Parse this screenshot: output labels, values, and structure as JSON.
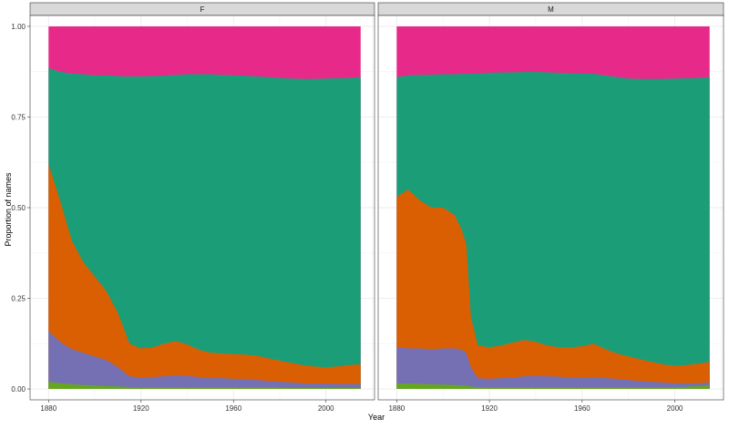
{
  "chart_data": {
    "type": "area",
    "xlabel": "Year",
    "ylabel": "Proportion of names",
    "xlim": [
      1872,
      2021
    ],
    "ylim": [
      -0.03,
      1.03
    ],
    "x_ticks": [
      1880,
      1920,
      1960,
      2000
    ],
    "x_tick_labels": [
      "1880",
      "1920",
      "1960",
      "2000"
    ],
    "y_ticks": [
      0,
      0.25,
      0.5,
      0.75,
      1
    ],
    "y_tick_labels": [
      "0.00",
      "0.25",
      "0.50",
      "0.75",
      "1.00"
    ],
    "grid": true,
    "stacking": "fill",
    "layer_order_bottom_to_top": [
      "green",
      "purple",
      "orange",
      "teal",
      "pink"
    ],
    "colors": {
      "green": "#66a61e",
      "purple": "#7570b3",
      "orange": "#d95f02",
      "teal": "#1b9e77",
      "pink": "#e7298a"
    },
    "panels": [
      {
        "facet": "F",
        "x": [
          1880,
          1885,
          1890,
          1895,
          1900,
          1905,
          1910,
          1913,
          1915,
          1920,
          1925,
          1930,
          1935,
          1940,
          1945,
          1950,
          1955,
          1960,
          1965,
          1970,
          1975,
          1980,
          1985,
          1990,
          1995,
          2000,
          2005,
          2010,
          2015
        ],
        "cumulative_tops": {
          "green": [
            0.02,
            0.016,
            0.013,
            0.011,
            0.01,
            0.008,
            0.007,
            0.006,
            0.005,
            0.004,
            0.004,
            0.004,
            0.004,
            0.004,
            0.004,
            0.004,
            0.004,
            0.004,
            0.004,
            0.004,
            0.004,
            0.004,
            0.003,
            0.003,
            0.003,
            0.003,
            0.003,
            0.003,
            0.003
          ],
          "purple": [
            0.16,
            0.13,
            0.11,
            0.1,
            0.09,
            0.08,
            0.06,
            0.045,
            0.035,
            0.032,
            0.033,
            0.035,
            0.038,
            0.036,
            0.033,
            0.03,
            0.03,
            0.028,
            0.028,
            0.025,
            0.022,
            0.02,
            0.018,
            0.016,
            0.015,
            0.015,
            0.014,
            0.014,
            0.014
          ],
          "orange": [
            0.62,
            0.52,
            0.41,
            0.35,
            0.31,
            0.27,
            0.21,
            0.16,
            0.125,
            0.112,
            0.115,
            0.125,
            0.132,
            0.123,
            0.108,
            0.1,
            0.098,
            0.096,
            0.095,
            0.092,
            0.085,
            0.078,
            0.072,
            0.066,
            0.062,
            0.06,
            0.062,
            0.066,
            0.068
          ],
          "teal": [
            0.885,
            0.875,
            0.87,
            0.868,
            0.865,
            0.865,
            0.863,
            0.862,
            0.862,
            0.862,
            0.863,
            0.864,
            0.866,
            0.868,
            0.868,
            0.868,
            0.866,
            0.865,
            0.864,
            0.862,
            0.86,
            0.858,
            0.856,
            0.855,
            0.855,
            0.856,
            0.857,
            0.858,
            0.86
          ],
          "pink": [
            1,
            1,
            1,
            1,
            1,
            1,
            1,
            1,
            1,
            1,
            1,
            1,
            1,
            1,
            1,
            1,
            1,
            1,
            1,
            1,
            1,
            1,
            1,
            1,
            1,
            1,
            1,
            1,
            1
          ]
        }
      },
      {
        "facet": "M",
        "x": [
          1880,
          1885,
          1890,
          1895,
          1900,
          1905,
          1908,
          1910,
          1912,
          1915,
          1920,
          1925,
          1930,
          1935,
          1940,
          1945,
          1950,
          1955,
          1960,
          1965,
          1970,
          1975,
          1980,
          1985,
          1990,
          1995,
          2000,
          2005,
          2010,
          2015
        ],
        "cumulative_tops": {
          "green": [
            0.015,
            0.015,
            0.014,
            0.013,
            0.012,
            0.011,
            0.01,
            0.009,
            0.007,
            0.005,
            0.004,
            0.004,
            0.004,
            0.004,
            0.004,
            0.004,
            0.004,
            0.004,
            0.004,
            0.004,
            0.004,
            0.004,
            0.004,
            0.004,
            0.004,
            0.004,
            0.005,
            0.006,
            0.008,
            0.01
          ],
          "purple": [
            0.115,
            0.112,
            0.112,
            0.11,
            0.112,
            0.112,
            0.108,
            0.1,
            0.06,
            0.03,
            0.028,
            0.03,
            0.032,
            0.035,
            0.036,
            0.035,
            0.034,
            0.032,
            0.032,
            0.033,
            0.03,
            0.028,
            0.025,
            0.022,
            0.02,
            0.018,
            0.016,
            0.016,
            0.016,
            0.018
          ],
          "orange": [
            0.53,
            0.55,
            0.52,
            0.5,
            0.5,
            0.48,
            0.44,
            0.4,
            0.2,
            0.12,
            0.115,
            0.12,
            0.128,
            0.135,
            0.13,
            0.12,
            0.115,
            0.115,
            0.118,
            0.125,
            0.11,
            0.098,
            0.09,
            0.082,
            0.075,
            0.068,
            0.064,
            0.066,
            0.07,
            0.075
          ],
          "teal": [
            0.86,
            0.865,
            0.866,
            0.867,
            0.868,
            0.868,
            0.869,
            0.869,
            0.869,
            0.87,
            0.872,
            0.873,
            0.873,
            0.874,
            0.874,
            0.873,
            0.872,
            0.871,
            0.87,
            0.869,
            0.865,
            0.86,
            0.856,
            0.855,
            0.855,
            0.855,
            0.856,
            0.857,
            0.858,
            0.86
          ],
          "pink": [
            1,
            1,
            1,
            1,
            1,
            1,
            1,
            1,
            1,
            1,
            1,
            1,
            1,
            1,
            1,
            1,
            1,
            1,
            1,
            1,
            1,
            1,
            1,
            1,
            1,
            1,
            1,
            1,
            1,
            1
          ]
        }
      }
    ]
  }
}
